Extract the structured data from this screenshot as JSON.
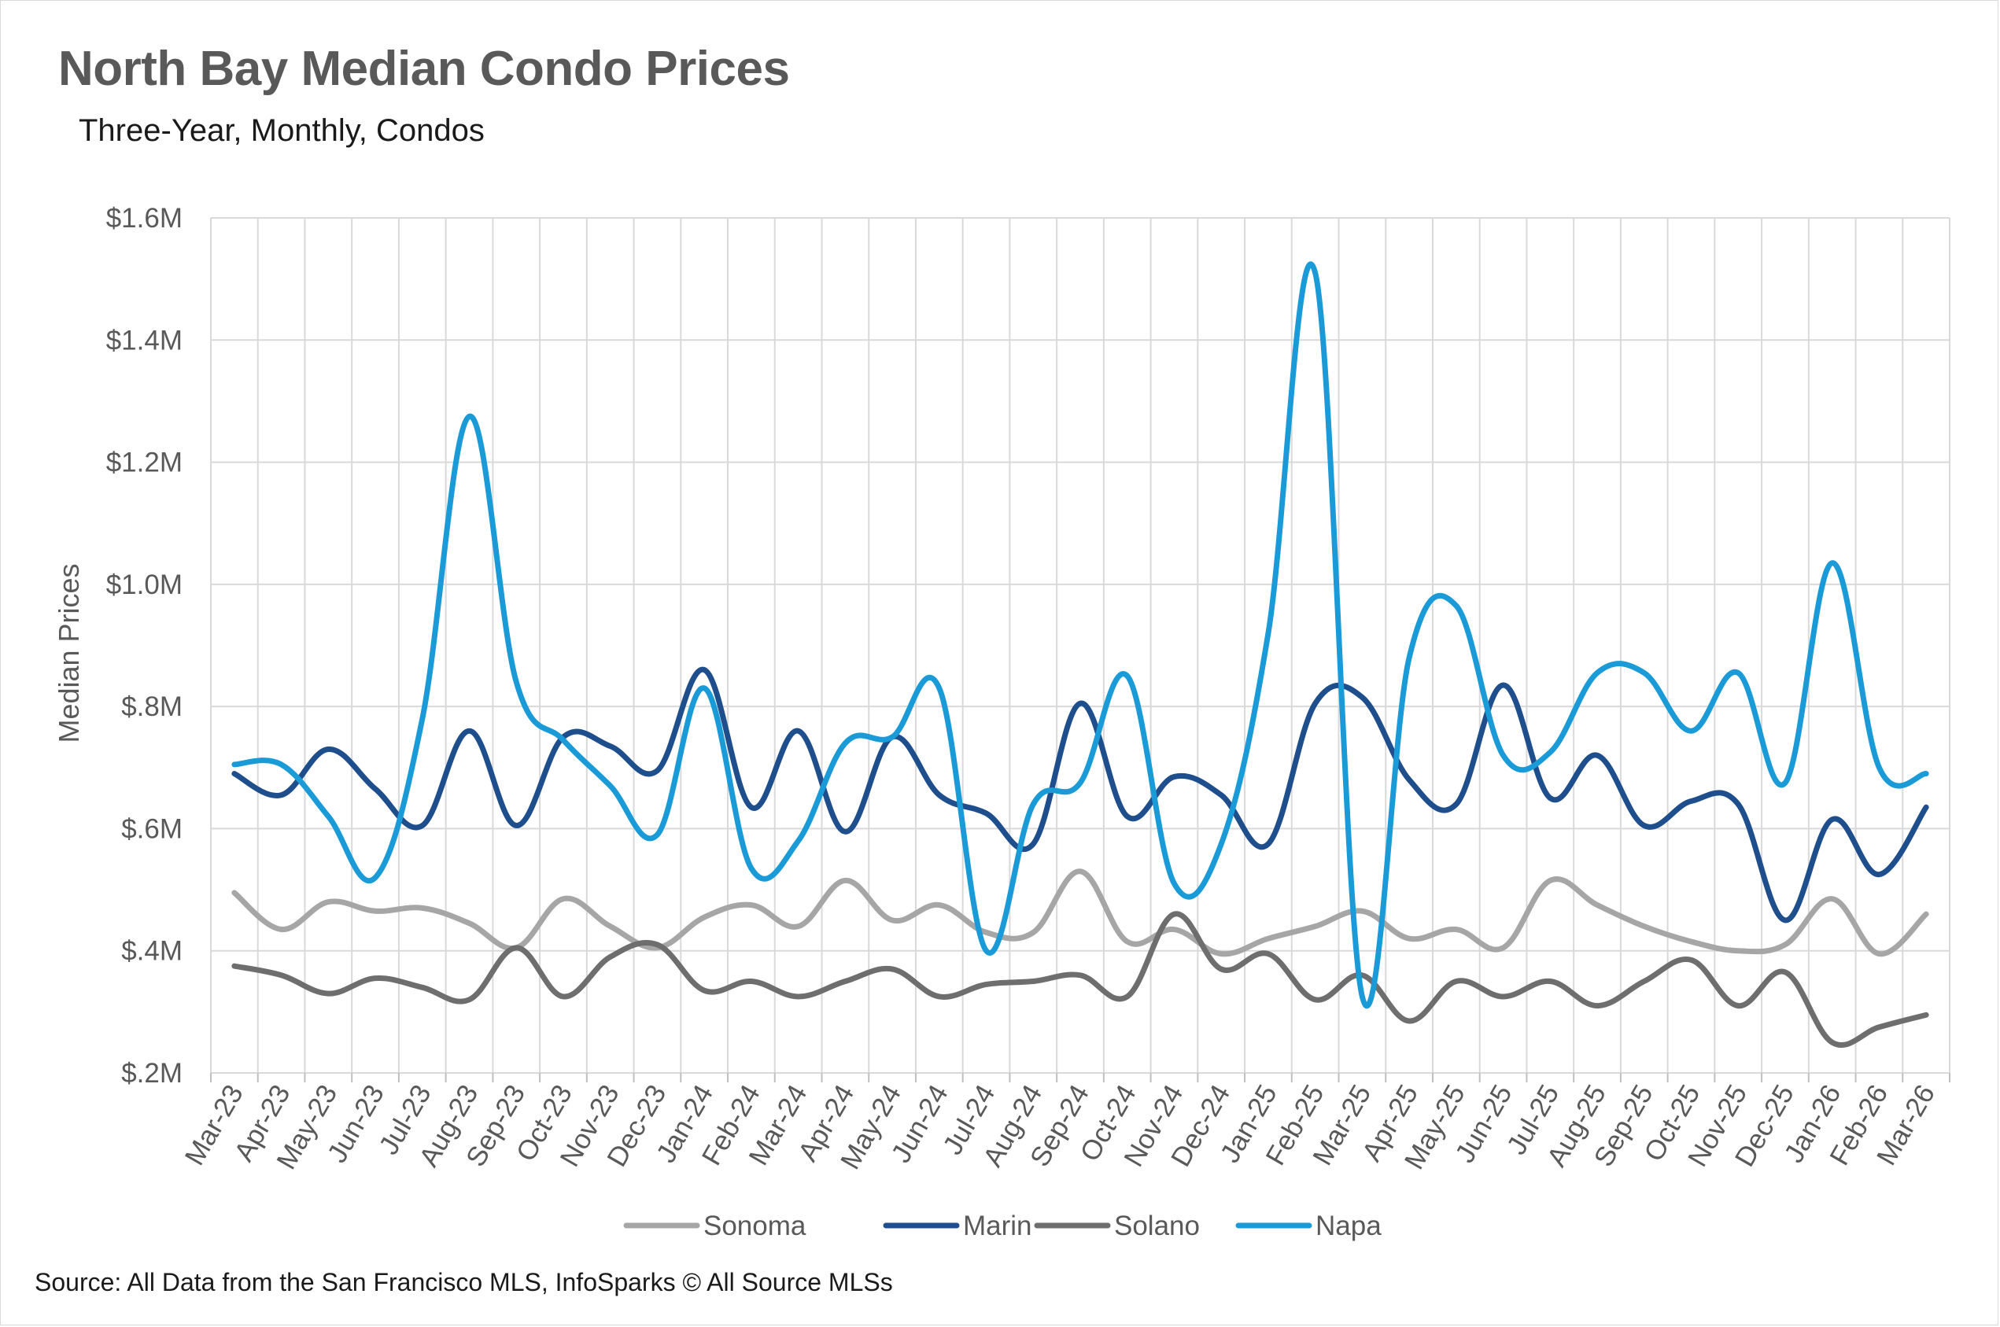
{
  "title": "North Bay Median Condo Prices",
  "subtitle": "Three-Year, Monthly, Condos",
  "source": "Source: All Data from the San Francisco MLS, InfoSparks © All Source MLSs",
  "chart_data": {
    "type": "line",
    "title": "North Bay Median Condo Prices",
    "subtitle": "Three-Year, Monthly, Condos",
    "xlabel": "",
    "ylabel": "Median Prices",
    "ylim": [
      200000,
      1600000
    ],
    "yticks": [
      200000,
      400000,
      600000,
      800000,
      1000000,
      1200000,
      1400000,
      1600000
    ],
    "ytick_labels": [
      "$.2M",
      "$.4M",
      "$.6M",
      "$.8M",
      "$1.0M",
      "$1.2M",
      "$1.4M",
      "$1.6M"
    ],
    "grid": true,
    "legend": "bottom",
    "categories": [
      "Mar-23",
      "Apr-23",
      "May-23",
      "Jun-23",
      "Jul-23",
      "Aug-23",
      "Sep-23",
      "Oct-23",
      "Nov-23",
      "Dec-23",
      "Jan-24",
      "Feb-24",
      "Mar-24",
      "Apr-24",
      "May-24",
      "Jun-24",
      "Jul-24",
      "Aug-24",
      "Sep-24",
      "Oct-24",
      "Nov-24",
      "Dec-24",
      "Jan-25",
      "Feb-25",
      "Mar-25",
      "Apr-25",
      "May-25",
      "Jun-25",
      "Jul-25",
      "Aug-25",
      "Sep-25",
      "Oct-25",
      "Nov-25",
      "Dec-25",
      "Jan-26",
      "Feb-26",
      "Mar-26"
    ],
    "series": [
      {
        "name": "Sonoma",
        "color": "#a6a6a6",
        "values": [
          495000,
          435000,
          480000,
          465000,
          470000,
          445000,
          405000,
          485000,
          440000,
          405000,
          455000,
          475000,
          440000,
          515000,
          450000,
          475000,
          430000,
          430000,
          530000,
          415000,
          435000,
          395000,
          420000,
          440000,
          465000,
          420000,
          435000,
          405000,
          515000,
          475000,
          440000,
          415000,
          400000,
          410000,
          485000,
          395000,
          460000
        ]
      },
      {
        "name": "Marin",
        "color": "#1f4e8c",
        "values": [
          690000,
          655000,
          730000,
          665000,
          605000,
          760000,
          605000,
          750000,
          735000,
          695000,
          860000,
          635000,
          760000,
          595000,
          750000,
          655000,
          625000,
          575000,
          805000,
          620000,
          685000,
          655000,
          575000,
          805000,
          815000,
          680000,
          640000,
          835000,
          650000,
          720000,
          605000,
          645000,
          640000,
          450000,
          615000,
          525000,
          635000
        ]
      },
      {
        "name": "Solano",
        "color": "#6e6e6e",
        "values": [
          375000,
          360000,
          330000,
          355000,
          340000,
          320000,
          405000,
          325000,
          390000,
          410000,
          335000,
          350000,
          325000,
          350000,
          370000,
          325000,
          345000,
          350000,
          360000,
          325000,
          460000,
          370000,
          395000,
          320000,
          360000,
          285000,
          350000,
          325000,
          350000,
          310000,
          350000,
          385000,
          310000,
          365000,
          250000,
          275000,
          295000
        ]
      },
      {
        "name": "Napa",
        "color": "#1a9bd7",
        "values": [
          705000,
          705000,
          620000,
          520000,
          780000,
          1275000,
          840000,
          745000,
          670000,
          590000,
          830000,
          535000,
          580000,
          740000,
          750000,
          830000,
          400000,
          640000,
          675000,
          850000,
          510000,
          575000,
          920000,
          1510000,
          325000,
          880000,
          965000,
          720000,
          725000,
          855000,
          855000,
          760000,
          855000,
          675000,
          1035000,
          700000,
          690000
        ]
      }
    ]
  }
}
